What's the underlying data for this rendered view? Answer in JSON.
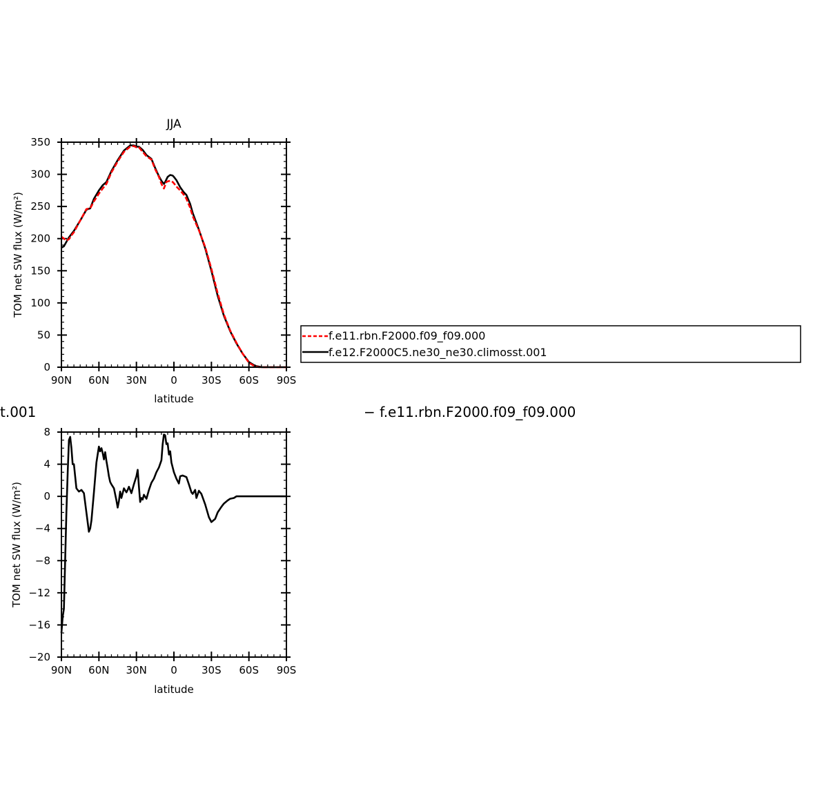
{
  "chart_data": [
    {
      "type": "line",
      "title": "JJA",
      "xlabel": "latitude",
      "ylabel": "TOM net SW flux (W/m²)",
      "x_ticks": [
        "90N",
        "60N",
        "30N",
        "0",
        "30S",
        "60S",
        "90S"
      ],
      "y_ticks": [
        "0",
        "50",
        "100",
        "150",
        "200",
        "250",
        "300",
        "350"
      ],
      "xlim": [
        90,
        -90
      ],
      "ylim": [
        0,
        350
      ],
      "legend": "right",
      "series": [
        {
          "name": "f.e11.rbn.F2000.f09_f09.000",
          "color": "#ff0000",
          "style": "dashed",
          "x": [
            90,
            88,
            86,
            84,
            82,
            80,
            75,
            70,
            67,
            64,
            60,
            57,
            54,
            50,
            45,
            40,
            35,
            32,
            30,
            28,
            25,
            22,
            18,
            15,
            12,
            10,
            8,
            7,
            6,
            5,
            3,
            1,
            0,
            -2,
            -5,
            -8,
            -10,
            -13,
            -15,
            -20,
            -25,
            -30,
            -35,
            -40,
            -45,
            -50,
            -55,
            -60,
            -65,
            -68,
            -70,
            -72,
            -75,
            -80,
            -85,
            -90
          ],
          "y": [
            203,
            200,
            197,
            199,
            205,
            210,
            228,
            246,
            247,
            258,
            270,
            278,
            285,
            303,
            320,
            335,
            343,
            344,
            342,
            342,
            335,
            328,
            323,
            308,
            296,
            285,
            278,
            283,
            288,
            289,
            290,
            288,
            286,
            281,
            275,
            268,
            262,
            248,
            235,
            213,
            187,
            153,
            115,
            82,
            57,
            38,
            21,
            7,
            1,
            0,
            0,
            0,
            0,
            0,
            0,
            0
          ]
        },
        {
          "name": "f.e12.F2000C5.ne30_ne30.climosst.001",
          "color": "#000000",
          "style": "solid",
          "x": [
            90,
            88,
            86,
            84,
            82,
            80,
            75,
            70,
            67,
            64,
            60,
            57,
            54,
            50,
            45,
            40,
            35,
            32,
            30,
            28,
            25,
            22,
            18,
            15,
            12,
            10,
            8,
            7,
            6,
            5,
            3,
            1,
            0,
            -2,
            -5,
            -8,
            -10,
            -13,
            -15,
            -20,
            -25,
            -30,
            -35,
            -40,
            -45,
            -50,
            -55,
            -60,
            -65,
            -68,
            -70,
            -72,
            -75,
            -80,
            -85,
            -90
          ],
          "y": [
            186,
            188,
            195,
            202,
            207,
            212,
            228,
            245,
            247,
            262,
            275,
            283,
            288,
            305,
            322,
            337,
            345,
            345,
            343,
            343,
            338,
            330,
            324,
            310,
            297,
            290,
            285,
            288,
            292,
            296,
            299,
            298,
            296,
            291,
            280,
            272,
            268,
            254,
            240,
            214,
            185,
            150,
            111,
            80,
            56,
            37,
            21,
            8,
            2,
            1,
            0,
            0,
            0,
            0,
            0,
            0
          ]
        }
      ]
    },
    {
      "type": "line",
      "title": "",
      "xlabel": "latitude",
      "ylabel": "TOM net SW flux (W/m²)",
      "x_ticks": [
        "90N",
        "60N",
        "30N",
        "0",
        "30S",
        "60S",
        "90S"
      ],
      "y_ticks": [
        "8",
        "4",
        "0",
        "-4",
        "-8",
        "-12",
        "-16",
        "-20"
      ],
      "xlim": [
        90,
        -90
      ],
      "ylim": [
        -20,
        8
      ],
      "series": [
        {
          "name": "",
          "color": "#000000",
          "style": "solid",
          "x": [
            90,
            89,
            88,
            87,
            86,
            85,
            84,
            83,
            82,
            81,
            80,
            78,
            76,
            74,
            72,
            70,
            68,
            67,
            66,
            64,
            62,
            60,
            59,
            58,
            57,
            56,
            55,
            54,
            53,
            52,
            51,
            50,
            48,
            46,
            45,
            44,
            43,
            42,
            40,
            38,
            37,
            36,
            34,
            32,
            30,
            29,
            28,
            27,
            26,
            25,
            24,
            22,
            20,
            18,
            16,
            14,
            12,
            10,
            9,
            8,
            7,
            6,
            5,
            4,
            3,
            2,
            0,
            -2,
            -4,
            -5,
            -7,
            -10,
            -12,
            -14,
            -15,
            -17,
            -18,
            -20,
            -22,
            -25,
            -28,
            -30,
            -33,
            -35,
            -38,
            -40,
            -43,
            -45,
            -48,
            -50,
            -55,
            -60,
            -63,
            -65,
            -68,
            -70,
            -75,
            -80,
            -90
          ],
          "y": [
            -17,
            -15,
            -14,
            -8,
            -2,
            3,
            7,
            7.4,
            6,
            4,
            4,
            1,
            0.6,
            0.8,
            0.4,
            -2,
            -4.4,
            -4,
            -3,
            0.5,
            4.2,
            6.2,
            5.6,
            6,
            5.4,
            4.6,
            5.5,
            4.4,
            3.5,
            2.5,
            1.8,
            1.5,
            1,
            -0.5,
            -1.4,
            -0.6,
            0.6,
            -0.2,
            1,
            0.5,
            0.8,
            1.2,
            0.4,
            1.5,
            2.5,
            3.3,
            1.2,
            -0.7,
            -0.2,
            -0.4,
            0.2,
            -0.3,
            0.8,
            1.7,
            2.2,
            3,
            3.6,
            4.5,
            6.5,
            7.7,
            7.6,
            6.5,
            6.6,
            5.2,
            5.6,
            4.2,
            3,
            2.2,
            1.6,
            2.5,
            2.6,
            2.4,
            1.5,
            0.5,
            0.3,
            0.8,
            -0.2,
            0.7,
            0.3,
            -1,
            -2.6,
            -3.2,
            -2.8,
            -2,
            -1.3,
            -0.9,
            -0.5,
            -0.3,
            -0.2,
            0,
            0,
            0,
            0,
            0,
            0,
            0,
            0,
            0,
            0
          ]
        }
      ]
    }
  ],
  "captions": {
    "left_fragment": "t.001",
    "right_legend": "−  f.e11.rbn.F2000.f09_f09.000"
  }
}
